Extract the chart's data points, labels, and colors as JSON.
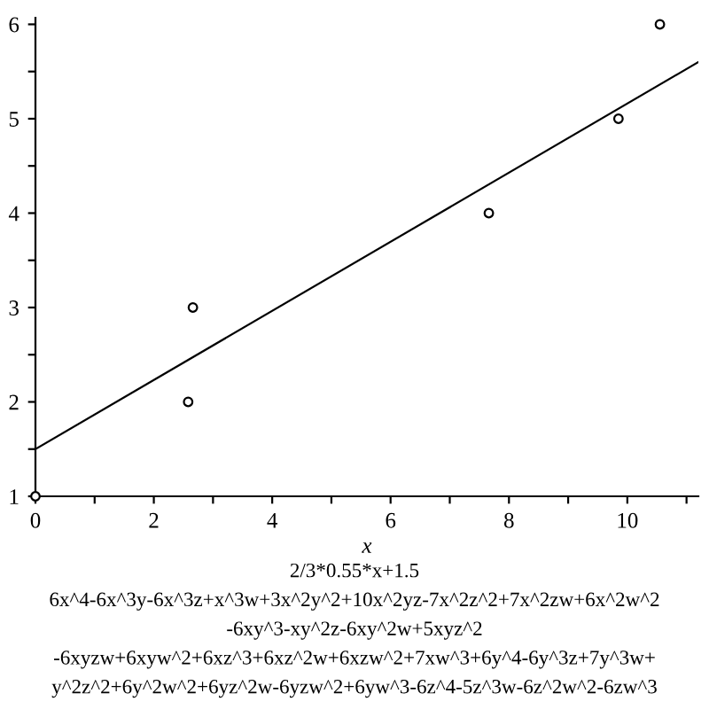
{
  "chart_data": {
    "type": "scatter",
    "xlabel": "x",
    "xlim": [
      0,
      11.2
    ],
    "ylim": [
      1,
      6.07
    ],
    "xticks": [
      0,
      {
        "value": 1,
        "label": null
      },
      2,
      {
        "value": 3,
        "label": null
      },
      4,
      {
        "value": 5,
        "label": null
      },
      6,
      {
        "value": 7,
        "label": null
      },
      8,
      {
        "value": 9,
        "label": null
      },
      10,
      {
        "value": 11,
        "label": null
      }
    ],
    "yticks": [
      1,
      {
        "value": 1.5,
        "label": null
      },
      2,
      {
        "value": 2.5,
        "label": null
      },
      3,
      {
        "value": 3.5,
        "label": null
      },
      4,
      {
        "value": 4.5,
        "label": null
      },
      5,
      {
        "value": 5.5,
        "label": null
      },
      6
    ],
    "grid": false,
    "legend": false,
    "series": [
      {
        "color": "#000000",
        "marker": "circle",
        "x": [
          0,
          2.58,
          2.66,
          7.66,
          9.85,
          10.55
        ],
        "values": [
          1,
          2,
          3,
          4,
          5,
          6
        ]
      },
      {
        "type": "line",
        "color": "#000000",
        "marker": "none",
        "line_style": "solid",
        "x": [
          0,
          11.2
        ],
        "values": [
          1.5,
          5.6
        ]
      }
    ],
    "annotations": [
      "2/3*0.55*x+1.5",
      "6x^4-6x^3y-6x^3z+x^3w+3x^2y^2+10x^2yz-7x^2z^2+7x^2zw+6x^2w^2",
      "-6xy^3-xy^2z-6xy^2w+5xyz^2",
      "-6xyzw+6xyw^2+6xz^3+6xz^2w+6xzw^2+7xw^3+6y^4-6y^3z+7y^3w+",
      "y^2z^2+6y^2w^2+6yz^2w-6yzw^2+6yw^3-6z^4-5z^3w-6z^2w^2-6zw^3"
    ]
  }
}
